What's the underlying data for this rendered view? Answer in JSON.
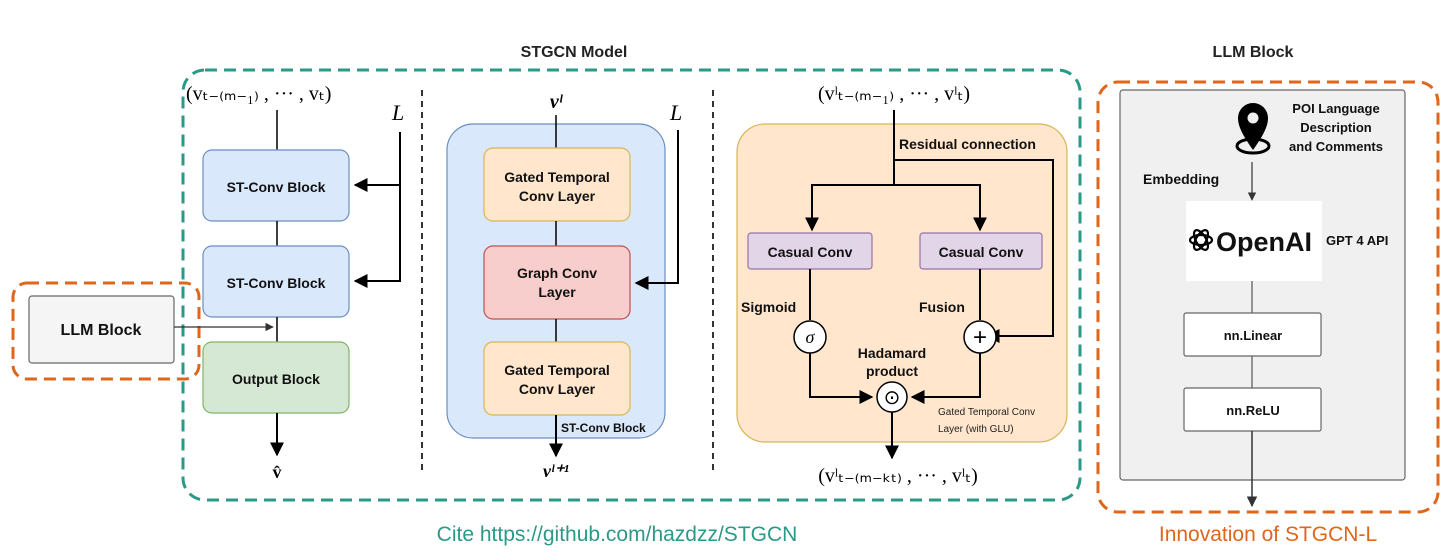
{
  "titles": {
    "stgcn_model": "STGCN Model",
    "llm_block": "LLM Block"
  },
  "left_column": {
    "input_label": "(vₜ₋₍ₘ₋₁₎ , ··· , vₜ)",
    "laplacian_label": "L",
    "st_conv_block_1": "ST-Conv Block",
    "st_conv_block_2": "ST-Conv Block",
    "output_block": "Output Block",
    "output_label": "v̂",
    "llm_block_box": "LLM Block"
  },
  "middle_column": {
    "input_label": "vˡ",
    "laplacian_label": "L",
    "gated_temporal_1_line1": "Gated Temporal",
    "gated_temporal_1_line2": "Conv Layer",
    "graph_conv_line1": "Graph Conv",
    "graph_conv_line2": "Layer",
    "gated_temporal_2_line1": "Gated Temporal",
    "gated_temporal_2_line2": "Conv Layer",
    "container_caption": "ST-Conv Block",
    "output_label": "vˡ⁺¹"
  },
  "right_column": {
    "input_label": "(vˡₜ₋₍ₘ₋₁₎ , ··· , vˡₜ)",
    "residual_label": "Residual connection",
    "casual_conv_left": "Casual Conv",
    "casual_conv_right": "Casual Conv",
    "sigmoid_label": "Sigmoid",
    "fusion_label": "Fusion",
    "sigma_symbol": "σ",
    "plus_symbol": "+",
    "hadamard_line1": "Hadamard",
    "hadamard_line2": "product",
    "odot_symbol": "⊙",
    "container_caption_line1": "Gated Temporal Conv",
    "container_caption_line2": "Layer (with GLU)",
    "output_label": "(vˡₜ₋₍ₘ₋ₖₜ₎ , ··· , vˡₜ)"
  },
  "llm_panel": {
    "poi_line1": "POI Language",
    "poi_line2": "Description",
    "poi_line3": "and Comments",
    "embedding_label": "Embedding",
    "openai_text": "OpenAI",
    "gpt_label": "GPT 4 API",
    "linear_label": "nn.Linear",
    "relu_label": "nn.ReLU"
  },
  "footer": {
    "cite": "Cite https://github.com/hazdzz/STGCN",
    "innovation": "Innovation of STGCN-L"
  },
  "colors": {
    "teal_dash": "#2a9a88",
    "orange_dash": "#e0661b",
    "blue_box": "#dae8fc",
    "blue_stroke": "#6c8ebf",
    "yellow_box": "#ffe6cc",
    "yellow_stroke": "#d6b656",
    "red_box": "#f8cecc",
    "red_stroke": "#b85450",
    "green_box": "#d5e8d4",
    "green_stroke": "#82b366",
    "purple_box": "#e1d5e7",
    "purple_stroke": "#9673a6",
    "panel_gray": "#f0f0f0",
    "llm_box_gray": "#f5f5f5"
  }
}
